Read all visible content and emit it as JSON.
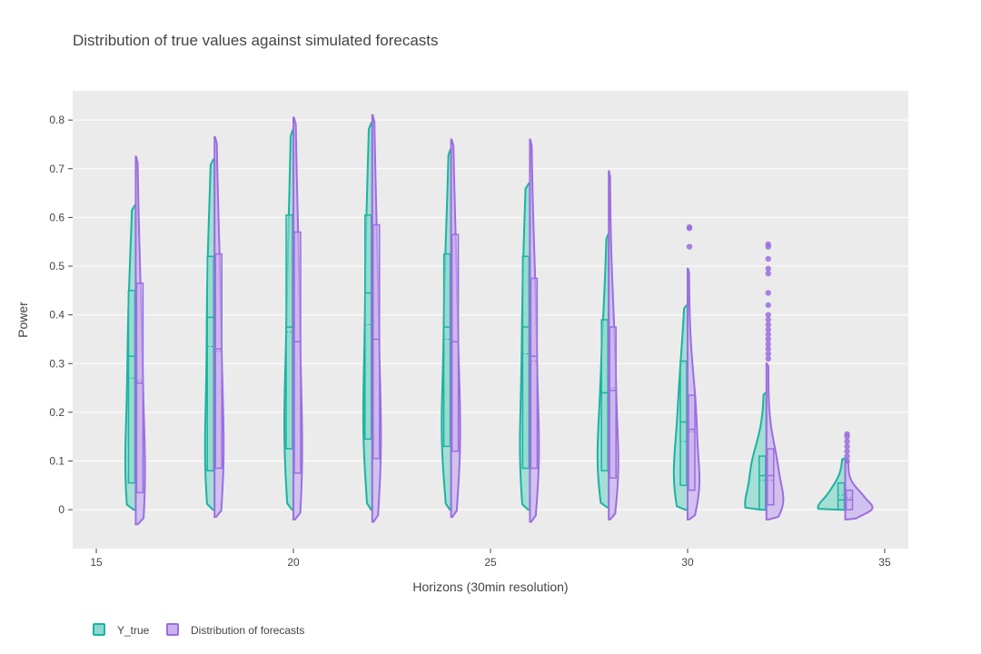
{
  "chart_data": {
    "type": "violin",
    "title": "Distribution of true values against simulated forecasts",
    "xlabel": "Horizons (30min resolution)",
    "ylabel": "Power",
    "xlim": [
      14.4,
      35.6
    ],
    "ylim": [
      -0.08,
      0.86
    ],
    "x_ticks": [
      "15",
      "20",
      "25",
      "30",
      "35"
    ],
    "y_ticks": [
      "0",
      "0.1",
      "0.2",
      "0.3",
      "0.4",
      "0.5",
      "0.6",
      "0.7",
      "0.8"
    ],
    "grid": true,
    "legend_position": "bottom-left",
    "series": [
      {
        "name": "Y_true",
        "color": "#1bb3a1",
        "fill": "#8dd9ce",
        "side": "negative",
        "groups": [
          {
            "x": 16,
            "min": 0.0,
            "q1": 0.055,
            "median": 0.315,
            "mean": 0.27,
            "q3": 0.45,
            "max": 0.625
          },
          {
            "x": 18,
            "min": 0.0,
            "q1": 0.08,
            "median": 0.395,
            "mean": 0.335,
            "q3": 0.52,
            "max": 0.72
          },
          {
            "x": 20,
            "min": 0.0,
            "q1": 0.125,
            "median": 0.375,
            "mean": 0.365,
            "q3": 0.605,
            "max": 0.78
          },
          {
            "x": 22,
            "min": 0.0,
            "q1": 0.145,
            "median": 0.445,
            "mean": 0.38,
            "q3": 0.605,
            "max": 0.795
          },
          {
            "x": 24,
            "min": 0.0,
            "q1": 0.13,
            "median": 0.375,
            "mean": 0.35,
            "q3": 0.525,
            "max": 0.74
          },
          {
            "x": 26,
            "min": 0.0,
            "q1": 0.085,
            "median": 0.375,
            "mean": 0.32,
            "q3": 0.52,
            "max": 0.67
          },
          {
            "x": 28,
            "min": 0.005,
            "q1": 0.08,
            "median": 0.24,
            "mean": 0.24,
            "q3": 0.39,
            "max": 0.565
          },
          {
            "x": 30,
            "min": 0.0,
            "q1": 0.05,
            "median": 0.18,
            "mean": 0.14,
            "q3": 0.305,
            "max": 0.42
          },
          {
            "x": 32,
            "min": 0.0,
            "q1": 0.0,
            "median": 0.07,
            "mean": 0.06,
            "q3": 0.11,
            "max": 0.24
          },
          {
            "x": 34,
            "min": 0.0,
            "q1": 0.0,
            "median": 0.02,
            "mean": 0.03,
            "q3": 0.055,
            "max": 0.105
          }
        ]
      },
      {
        "name": "Distribution of forecasts",
        "color": "#9b6fde",
        "fill": "#c8b3ef",
        "side": "positive",
        "groups": [
          {
            "x": 16,
            "min": -0.03,
            "q1": 0.035,
            "median": 0.26,
            "mean": 0.265,
            "q3": 0.465,
            "max": 0.725
          },
          {
            "x": 18,
            "min": -0.015,
            "q1": 0.085,
            "median": 0.33,
            "mean": 0.325,
            "q3": 0.525,
            "max": 0.765
          },
          {
            "x": 20,
            "min": -0.02,
            "q1": 0.075,
            "median": 0.345,
            "mean": 0.345,
            "q3": 0.57,
            "max": 0.805
          },
          {
            "x": 22,
            "min": -0.025,
            "q1": 0.105,
            "median": 0.35,
            "mean": 0.35,
            "q3": 0.585,
            "max": 0.81
          },
          {
            "x": 24,
            "min": -0.015,
            "q1": 0.12,
            "median": 0.345,
            "mean": 0.345,
            "q3": 0.565,
            "max": 0.76
          },
          {
            "x": 26,
            "min": -0.025,
            "q1": 0.085,
            "median": 0.315,
            "mean": 0.305,
            "q3": 0.475,
            "max": 0.76
          },
          {
            "x": 28,
            "min": -0.02,
            "q1": 0.065,
            "median": 0.245,
            "mean": 0.25,
            "q3": 0.375,
            "max": 0.695
          },
          {
            "x": 30,
            "min": -0.02,
            "q1": 0.04,
            "median": 0.165,
            "mean": 0.16,
            "q3": 0.235,
            "max": 0.495
          },
          {
            "x": 32,
            "min": -0.02,
            "q1": 0.01,
            "median": 0.07,
            "mean": 0.06,
            "q3": 0.125,
            "max": 0.3
          },
          {
            "x": 34,
            "min": -0.02,
            "q1": 0.0,
            "median": 0.02,
            "mean": 0.025,
            "q3": 0.04,
            "max": 0.1
          }
        ],
        "outliers": [
          {
            "x": 30,
            "values": [
              0.54,
              0.578,
              0.58
            ]
          },
          {
            "x": 32,
            "values": [
              0.31,
              0.32,
              0.33,
              0.34,
              0.35,
              0.36,
              0.37,
              0.38,
              0.39,
              0.4,
              0.42,
              0.445,
              0.485,
              0.495,
              0.515,
              0.54,
              0.545
            ]
          },
          {
            "x": 34,
            "values": [
              0.1,
              0.11,
              0.12,
              0.13,
              0.14,
              0.15,
              0.155
            ]
          }
        ]
      }
    ]
  }
}
